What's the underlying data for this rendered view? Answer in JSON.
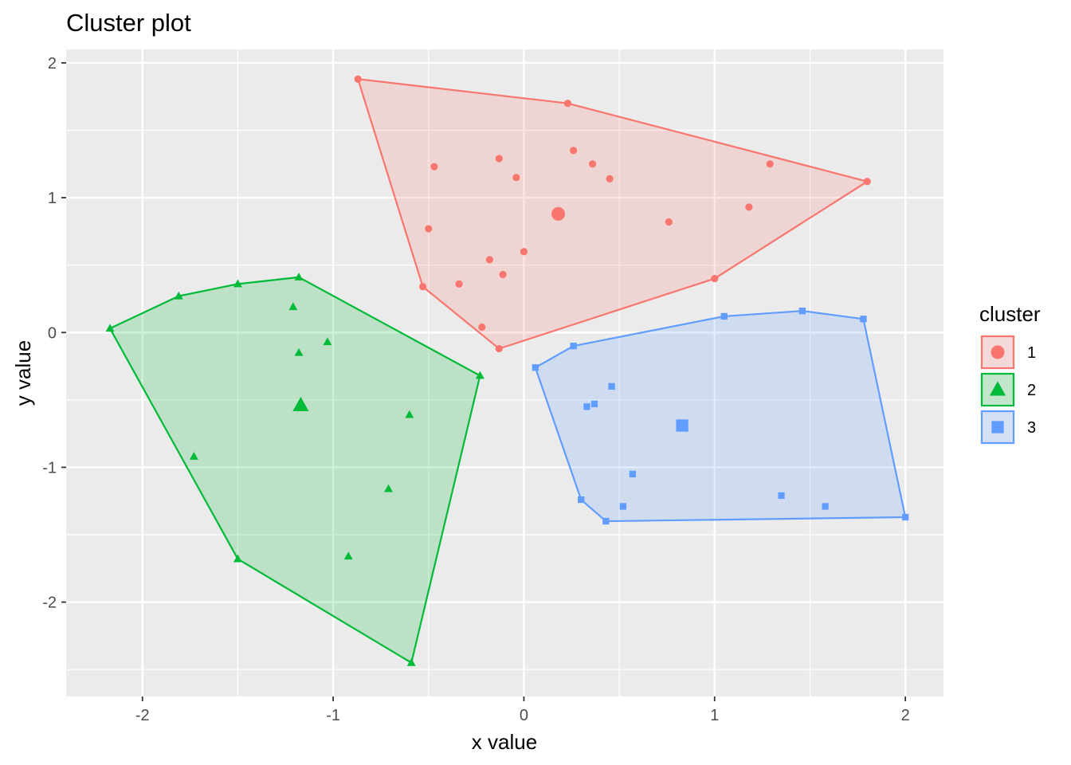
{
  "chart_data": {
    "type": "scatter",
    "title": "Cluster plot",
    "xlabel": "x value",
    "ylabel": "y value",
    "xlim": [
      -2.4,
      2.2
    ],
    "ylim": [
      -2.7,
      2.1
    ],
    "x_ticks": [
      -2,
      -1,
      0,
      1,
      2
    ],
    "y_ticks": [
      -2,
      -1,
      0,
      1,
      2
    ],
    "x_tick_labels": [
      "-2",
      "-1",
      "0",
      "1",
      "2"
    ],
    "y_tick_labels": [
      "-2",
      "-1",
      "0",
      "1",
      "2"
    ],
    "grid": true,
    "legend": {
      "title": "cluster",
      "position": "right"
    },
    "series": [
      {
        "name": "1",
        "shape": "circle",
        "color": "#F8766D",
        "fill": "#F8766D",
        "hull": [
          [
            -0.87,
            1.88
          ],
          [
            0.23,
            1.7
          ],
          [
            1.8,
            1.12
          ],
          [
            1.0,
            0.4
          ],
          [
            -0.13,
            -0.12
          ],
          [
            -0.53,
            0.34
          ]
        ],
        "points": [
          [
            -0.87,
            1.88
          ],
          [
            0.23,
            1.7
          ],
          [
            1.8,
            1.12
          ],
          [
            1.0,
            0.4
          ],
          [
            -0.13,
            -0.12
          ],
          [
            -0.53,
            0.34
          ],
          [
            -0.47,
            1.23
          ],
          [
            -0.13,
            1.29
          ],
          [
            -0.04,
            1.15
          ],
          [
            0.26,
            1.35
          ],
          [
            0.36,
            1.25
          ],
          [
            0.45,
            1.14
          ],
          [
            1.29,
            1.25
          ],
          [
            1.18,
            0.93
          ],
          [
            0.76,
            0.82
          ],
          [
            -0.5,
            0.77
          ],
          [
            0.0,
            0.6
          ],
          [
            -0.18,
            0.54
          ],
          [
            -0.11,
            0.43
          ],
          [
            -0.34,
            0.36
          ],
          [
            -0.22,
            0.04
          ]
        ],
        "center": [
          0.18,
          0.88
        ]
      },
      {
        "name": "2",
        "shape": "triangle",
        "color": "#00BA38",
        "fill": "#00BA38",
        "hull": [
          [
            -2.17,
            0.03
          ],
          [
            -1.81,
            0.27
          ],
          [
            -1.5,
            0.36
          ],
          [
            -1.18,
            0.41
          ],
          [
            -0.23,
            -0.32
          ],
          [
            -0.59,
            -2.45
          ],
          [
            -1.5,
            -1.68
          ]
        ],
        "points": [
          [
            -2.17,
            0.03
          ],
          [
            -1.81,
            0.27
          ],
          [
            -1.5,
            0.36
          ],
          [
            -1.18,
            0.41
          ],
          [
            -0.23,
            -0.32
          ],
          [
            -0.59,
            -2.45
          ],
          [
            -1.5,
            -1.68
          ],
          [
            -1.21,
            0.19
          ],
          [
            -1.18,
            -0.15
          ],
          [
            -1.03,
            -0.07
          ],
          [
            -0.6,
            -0.61
          ],
          [
            -1.73,
            -0.92
          ],
          [
            -0.71,
            -1.16
          ],
          [
            -0.92,
            -1.66
          ]
        ],
        "center": [
          -1.17,
          -0.54
        ]
      },
      {
        "name": "3",
        "shape": "square",
        "color": "#619CFF",
        "fill": "#619CFF",
        "hull": [
          [
            0.06,
            -0.26
          ],
          [
            0.26,
            -0.1
          ],
          [
            1.05,
            0.12
          ],
          [
            1.46,
            0.16
          ],
          [
            1.78,
            0.1
          ],
          [
            2.0,
            -1.37
          ],
          [
            0.43,
            -1.4
          ],
          [
            0.3,
            -1.24
          ]
        ],
        "points": [
          [
            0.06,
            -0.26
          ],
          [
            0.26,
            -0.1
          ],
          [
            1.05,
            0.12
          ],
          [
            1.46,
            0.16
          ],
          [
            1.78,
            0.1
          ],
          [
            2.0,
            -1.37
          ],
          [
            0.43,
            -1.4
          ],
          [
            0.3,
            -1.24
          ],
          [
            0.46,
            -0.4
          ],
          [
            0.37,
            -0.53
          ],
          [
            0.33,
            -0.55
          ],
          [
            0.57,
            -1.05
          ],
          [
            0.52,
            -1.29
          ],
          [
            1.35,
            -1.21
          ],
          [
            1.58,
            -1.29
          ]
        ],
        "center": [
          0.83,
          -0.69
        ]
      }
    ]
  }
}
